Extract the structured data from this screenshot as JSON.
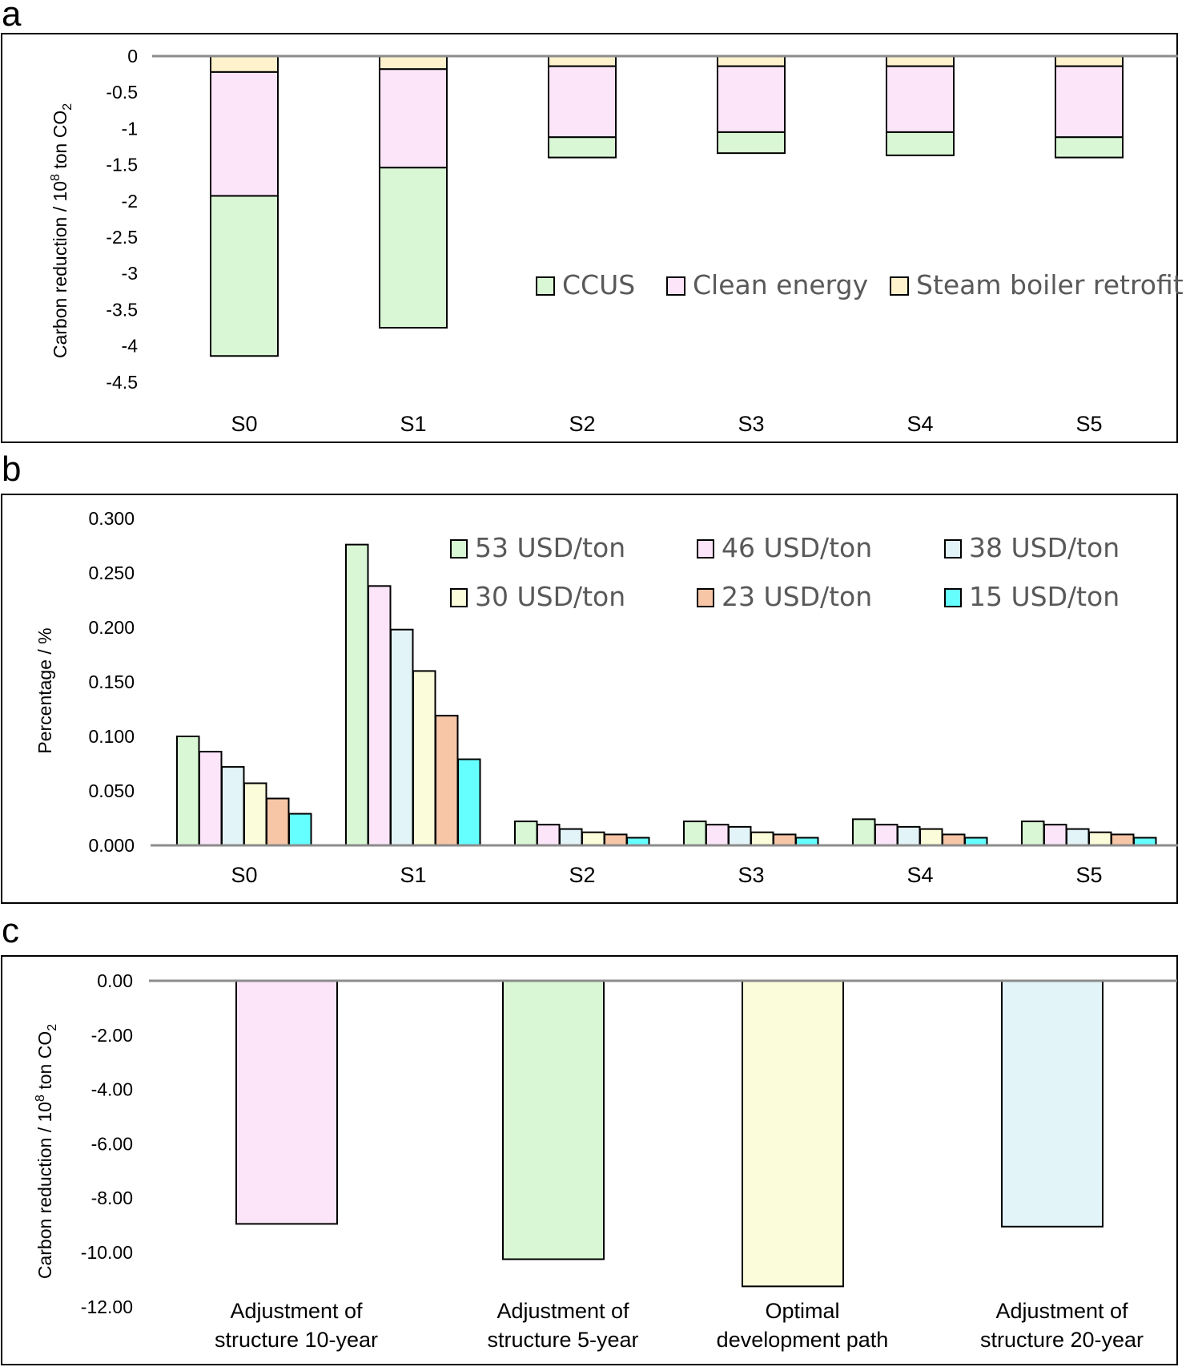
{
  "chart_data": [
    {
      "panel": "a",
      "type": "stacked-bar",
      "ylabel": "Carbon reduction / 10",
      "ylabel_sup": "8",
      "ylabel_tail": " ton CO",
      "ylabel_sub": "2",
      "ylim": [
        -4.5,
        0
      ],
      "yticks": [
        "0",
        "-0.5",
        "-1",
        "-1.5",
        "-2",
        "-2.5",
        "-3",
        "-3.5",
        "-4",
        "-4.5"
      ],
      "ytick_values": [
        0,
        -0.5,
        -1,
        -1.5,
        -2,
        -2.5,
        -3,
        -3.5,
        -4,
        -4.5
      ],
      "categories": [
        "S0",
        "S1",
        "S2",
        "S3",
        "S4",
        "S5"
      ],
      "series": [
        {
          "name": "Steam boiler retrofit",
          "color": "#fff2cc",
          "values": [
            -0.22,
            -0.18,
            -0.14,
            -0.14,
            -0.14,
            -0.14
          ]
        },
        {
          "name": "Clean energy",
          "color": "#fce4f9",
          "values": [
            -1.71,
            -1.36,
            -0.98,
            -0.91,
            -0.91,
            -0.98
          ]
        },
        {
          "name": "CCUS",
          "color": "#d9f7d4",
          "values": [
            -2.21,
            -2.21,
            -0.28,
            -0.29,
            -0.32,
            -0.28
          ]
        }
      ],
      "legend": [
        {
          "name": "CCUS",
          "color": "#d9f7d4"
        },
        {
          "name": "Clean energy",
          "color": "#fce4f9"
        },
        {
          "name": "Steam boiler retrofit",
          "color": "#fff2cc"
        }
      ]
    },
    {
      "panel": "b",
      "type": "bar",
      "ylabel": "Percentage / %",
      "ylim": [
        0,
        0.3
      ],
      "yticks": [
        "0.300",
        "0.250",
        "0.200",
        "0.150",
        "0.100",
        "0.050",
        "0.000"
      ],
      "ytick_values": [
        0.3,
        0.25,
        0.2,
        0.15,
        0.1,
        0.05,
        0
      ],
      "categories": [
        "S0",
        "S1",
        "S2",
        "S3",
        "S4",
        "S5"
      ],
      "series": [
        {
          "name": "53 USD/ton",
          "color": "#d9f7d4",
          "values": [
            0.1,
            0.276,
            0.022,
            0.022,
            0.024,
            0.022
          ]
        },
        {
          "name": "46 USD/ton",
          "color": "#fce4f9",
          "values": [
            0.086,
            0.238,
            0.019,
            0.019,
            0.019,
            0.019
          ]
        },
        {
          "name": "38 USD/ton",
          "color": "#e2f4f8",
          "values": [
            0.072,
            0.198,
            0.015,
            0.017,
            0.017,
            0.015
          ]
        },
        {
          "name": "30 USD/ton",
          "color": "#fbfcd9",
          "values": [
            0.057,
            0.16,
            0.012,
            0.012,
            0.015,
            0.012
          ]
        },
        {
          "name": "23 USD/ton",
          "color": "#f6c6a6",
          "values": [
            0.043,
            0.119,
            0.01,
            0.01,
            0.01,
            0.01
          ]
        },
        {
          "name": "15 USD/ton",
          "color": "#66ffff",
          "values": [
            0.029,
            0.079,
            0.007,
            0.007,
            0.007,
            0.007
          ]
        }
      ]
    },
    {
      "panel": "c",
      "type": "bar",
      "ylabel": "Carbon reduction / 10",
      "ylabel_sup": "8",
      "ylabel_tail": " ton CO",
      "ylabel_sub": "2",
      "ylim": [
        -12,
        0
      ],
      "yticks": [
        "0.00",
        "-2.00",
        "-4.00",
        "-6.00",
        "-8.00",
        "-10.00",
        "-12.00"
      ],
      "ytick_values": [
        0,
        -2,
        -4,
        -6,
        -8,
        -10,
        -12
      ],
      "categories": [
        [
          "Adjustment of",
          "structure 10-year"
        ],
        [
          "Adjustment of",
          "structure 5-year"
        ],
        [
          "Optimal",
          "development path"
        ],
        [
          "Adjustment of",
          "structure 20-year"
        ]
      ],
      "values": [
        -8.95,
        -10.25,
        -11.25,
        -9.05
      ],
      "colors": [
        "#fce4f9",
        "#d9f7d4",
        "#fbfcd9",
        "#e2f4f8"
      ]
    }
  ]
}
